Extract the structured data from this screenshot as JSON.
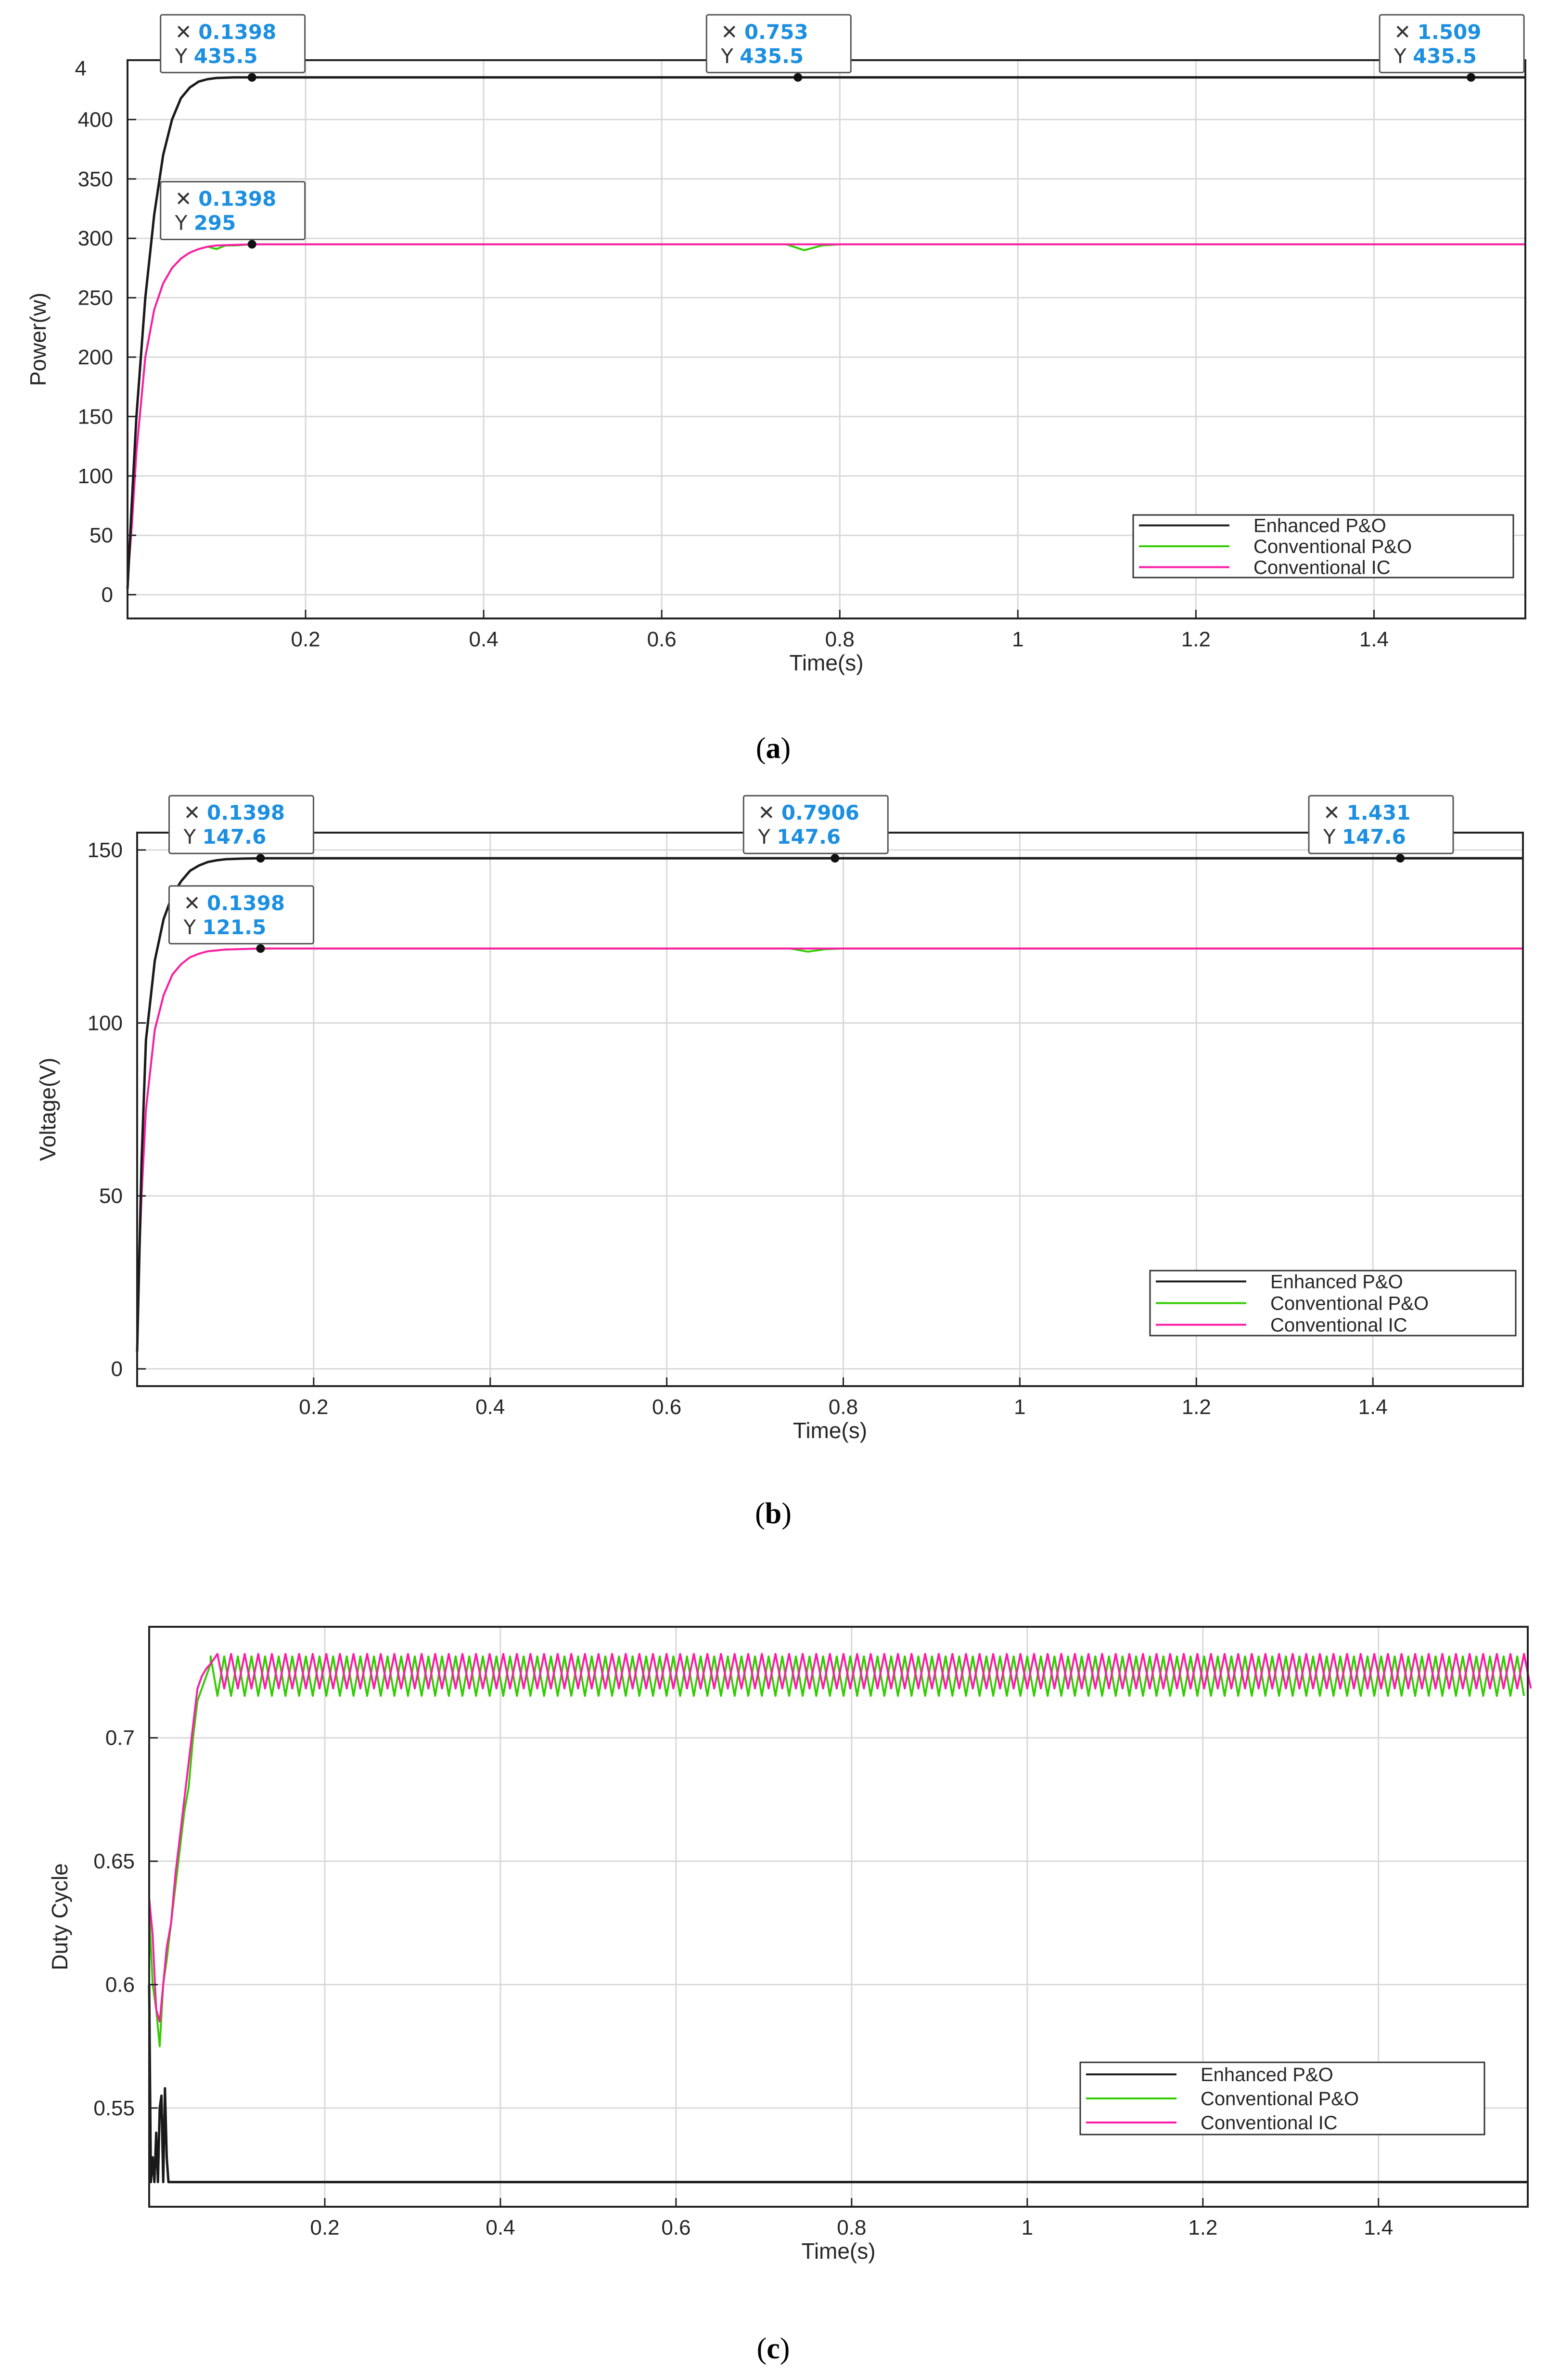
{
  "figure": {
    "captions": [
      "a",
      "b",
      "c"
    ]
  },
  "colors": {
    "enhanced_po": "#1a1a1a",
    "conventional_po": "#33cc00",
    "conventional_ic": "#ff1aa6",
    "datatip_value": "#1c8fe0"
  },
  "chart_data": [
    {
      "id": "a",
      "type": "line",
      "title": "",
      "xlabel": "Time(s)",
      "ylabel": "Power(w)",
      "xlim": [
        0,
        1.57
      ],
      "ylim": [
        -20,
        450
      ],
      "grid": true,
      "xticks": [
        0.2,
        0.4,
        0.6,
        0.8,
        1,
        1.2,
        1.4
      ],
      "xtick_labels": [
        "0.2",
        "0.4",
        "0.6",
        "0.8",
        "1",
        "1.2",
        "1.4"
      ],
      "yticks": [
        0,
        50,
        100,
        150,
        200,
        250,
        300,
        350,
        400
      ],
      "ytick_labels": [
        "0",
        "50",
        "100",
        "150",
        "200",
        "250",
        "300",
        "350",
        "400"
      ],
      "top_clipped_tick_label": "4",
      "legend_position": "lower-right",
      "series": [
        {
          "name": "Enhanced P&O",
          "color_key": "enhanced_po",
          "x": [
            0,
            0.005,
            0.01,
            0.02,
            0.03,
            0.04,
            0.05,
            0.06,
            0.07,
            0.08,
            0.09,
            0.1,
            0.12,
            0.14,
            0.2,
            0.4,
            0.6,
            0.8,
            1.0,
            1.2,
            1.4,
            1.57
          ],
          "y": [
            5,
            80,
            150,
            250,
            320,
            370,
            400,
            418,
            427,
            432,
            434,
            435,
            435.5,
            435.5,
            435.5,
            435.5,
            435.5,
            435.5,
            435.5,
            435.5,
            435.5,
            435.5
          ]
        },
        {
          "name": "Conventional P&O",
          "color_key": "conventional_po",
          "x": [
            0,
            0.005,
            0.01,
            0.02,
            0.03,
            0.04,
            0.05,
            0.06,
            0.07,
            0.08,
            0.09,
            0.1,
            0.11,
            0.12,
            0.14,
            0.2,
            0.4,
            0.6,
            0.74,
            0.76,
            0.78,
            0.8,
            1.0,
            1.2,
            1.4,
            1.57
          ],
          "y": [
            10,
            60,
            120,
            200,
            240,
            262,
            275,
            283,
            288,
            291,
            293,
            291,
            294,
            294,
            295,
            295,
            295,
            295,
            295,
            290,
            294,
            295,
            295,
            295,
            295,
            295
          ]
        },
        {
          "name": "Conventional IC",
          "color_key": "conventional_ic",
          "x": [
            0,
            0.005,
            0.01,
            0.02,
            0.03,
            0.04,
            0.05,
            0.06,
            0.07,
            0.08,
            0.09,
            0.1,
            0.12,
            0.14,
            0.2,
            0.4,
            0.6,
            0.8,
            1.0,
            1.2,
            1.4,
            1.57
          ],
          "y": [
            10,
            60,
            120,
            200,
            240,
            262,
            275,
            283,
            288,
            291,
            293,
            294,
            294.5,
            295,
            295,
            295,
            295,
            295,
            295,
            295,
            295,
            295
          ]
        }
      ],
      "datatips": [
        {
          "x_label": "0.1398",
          "y_label": "435.5",
          "x": 0.1398,
          "y": 435.5
        },
        {
          "x_label": "0.753",
          "y_label": "435.5",
          "x": 0.753,
          "y": 435.5
        },
        {
          "x_label": "1.509",
          "y_label": "435.5",
          "x": 1.509,
          "y": 435.5
        },
        {
          "x_label": "0.1398",
          "y_label": "295",
          "x": 0.1398,
          "y": 295
        }
      ]
    },
    {
      "id": "b",
      "type": "line",
      "title": "",
      "xlabel": "Time(s)",
      "ylabel": "Voltage(V)",
      "xlim": [
        0,
        1.57
      ],
      "ylim": [
        -5,
        155
      ],
      "grid": true,
      "xticks": [
        0.2,
        0.4,
        0.6,
        0.8,
        1,
        1.2,
        1.4
      ],
      "xtick_labels": [
        "0.2",
        "0.4",
        "0.6",
        "0.8",
        "1",
        "1.2",
        "1.4"
      ],
      "yticks": [
        0,
        50,
        100,
        150
      ],
      "ytick_labels": [
        "0",
        "50",
        "100",
        "150"
      ],
      "legend_position": "lower-right",
      "series": [
        {
          "name": "Enhanced P&O",
          "color_key": "enhanced_po",
          "x": [
            0,
            0.005,
            0.01,
            0.02,
            0.03,
            0.04,
            0.05,
            0.06,
            0.07,
            0.08,
            0.09,
            0.1,
            0.12,
            0.14,
            0.2,
            0.4,
            0.6,
            0.8,
            1.0,
            1.2,
            1.4,
            1.57
          ],
          "y": [
            5,
            60,
            95,
            118,
            130,
            137,
            141,
            144,
            145.5,
            146.5,
            147,
            147.3,
            147.5,
            147.6,
            147.6,
            147.6,
            147.6,
            147.6,
            147.6,
            147.6,
            147.6,
            147.6
          ]
        },
        {
          "name": "Conventional P&O",
          "color_key": "conventional_po",
          "x": [
            0,
            0.005,
            0.01,
            0.02,
            0.03,
            0.04,
            0.05,
            0.06,
            0.07,
            0.08,
            0.1,
            0.14,
            0.2,
            0.4,
            0.6,
            0.74,
            0.76,
            0.78,
            0.8,
            1.0,
            1.2,
            1.4,
            1.57
          ],
          "y": [
            15,
            50,
            75,
            98,
            108,
            114,
            117,
            119,
            120,
            120.7,
            121.2,
            121.5,
            121.5,
            121.5,
            121.5,
            121.5,
            120.6,
            121.3,
            121.5,
            121.5,
            121.5,
            121.5,
            121.5
          ]
        },
        {
          "name": "Conventional IC",
          "color_key": "conventional_ic",
          "x": [
            0,
            0.005,
            0.01,
            0.02,
            0.03,
            0.04,
            0.05,
            0.06,
            0.07,
            0.08,
            0.1,
            0.14,
            0.2,
            0.4,
            0.6,
            0.8,
            1.0,
            1.2,
            1.4,
            1.57
          ],
          "y": [
            15,
            50,
            75,
            98,
            108,
            114,
            117,
            119,
            120,
            120.7,
            121.2,
            121.5,
            121.5,
            121.5,
            121.5,
            121.5,
            121.5,
            121.5,
            121.5,
            121.5
          ]
        }
      ],
      "datatips": [
        {
          "x_label": "0.1398",
          "y_label": "147.6",
          "x": 0.1398,
          "y": 147.6
        },
        {
          "x_label": "0.7906",
          "y_label": "147.6",
          "x": 0.7906,
          "y": 147.6
        },
        {
          "x_label": "1.431",
          "y_label": "147.6",
          "x": 1.431,
          "y": 147.6
        },
        {
          "x_label": "0.1398",
          "y_label": "121.5",
          "x": 0.1398,
          "y": 121.5
        }
      ]
    },
    {
      "id": "c",
      "type": "line",
      "title": "",
      "xlabel": "Time(s)",
      "ylabel": "Duty Cycle",
      "xlim": [
        0,
        1.57
      ],
      "ylim": [
        0.51,
        0.745
      ],
      "grid": true,
      "xticks": [
        0.2,
        0.4,
        0.6,
        0.8,
        1,
        1.2,
        1.4
      ],
      "xtick_labels": [
        "0.2",
        "0.4",
        "0.6",
        "0.8",
        "1",
        "1.2",
        "1.4"
      ],
      "yticks": [
        0.55,
        0.6,
        0.65,
        0.7
      ],
      "ytick_labels": [
        "0.55",
        "0.6",
        "0.65",
        "0.7"
      ],
      "legend_position": "lower-right",
      "series": [
        {
          "name": "Enhanced P&O",
          "color_key": "enhanced_po",
          "x": [
            0,
            0.002,
            0.004,
            0.006,
            0.008,
            0.01,
            0.012,
            0.014,
            0.016,
            0.018,
            0.02,
            0.022,
            0.025,
            0.03,
            0.2,
            0.4,
            0.6,
            0.8,
            1.0,
            1.2,
            1.4,
            1.57
          ],
          "y": [
            0.6,
            0.52,
            0.53,
            0.52,
            0.54,
            0.52,
            0.55,
            0.555,
            0.52,
            0.558,
            0.53,
            0.52,
            0.52,
            0.52,
            0.52,
            0.52,
            0.52,
            0.52,
            0.52,
            0.52,
            0.52,
            0.52
          ]
        },
        {
          "name": "Conventional P&O",
          "color_key": "conventional_po",
          "x": [
            0,
            0.004,
            0.008,
            0.012,
            0.016,
            0.02,
            0.025,
            0.03,
            0.035,
            0.04,
            0.045,
            0.05,
            0.055,
            0.06,
            0.065,
            0.07
          ],
          "y": [
            0.63,
            0.6,
            0.59,
            0.575,
            0.6,
            0.61,
            0.625,
            0.64,
            0.655,
            0.67,
            0.68,
            0.7,
            0.715,
            0.72,
            0.725,
            0.73
          ]
        },
        {
          "name": "Conventional IC",
          "color_key": "conventional_ic",
          "x": [
            0,
            0.004,
            0.008,
            0.012,
            0.016,
            0.02,
            0.025,
            0.03,
            0.035,
            0.04,
            0.045,
            0.05,
            0.055,
            0.06,
            0.065,
            0.07
          ],
          "y": [
            0.635,
            0.62,
            0.59,
            0.585,
            0.6,
            0.615,
            0.625,
            0.645,
            0.66,
            0.675,
            0.69,
            0.705,
            0.72,
            0.725,
            0.728,
            0.73
          ]
        }
      ],
      "oscillation": {
        "start_x": 0.07,
        "period": 0.0155,
        "conventional_po": {
          "low": 0.717,
          "high": 0.733
        },
        "conventional_ic": {
          "low": 0.72,
          "high": 0.734
        }
      },
      "datatips": []
    }
  ]
}
